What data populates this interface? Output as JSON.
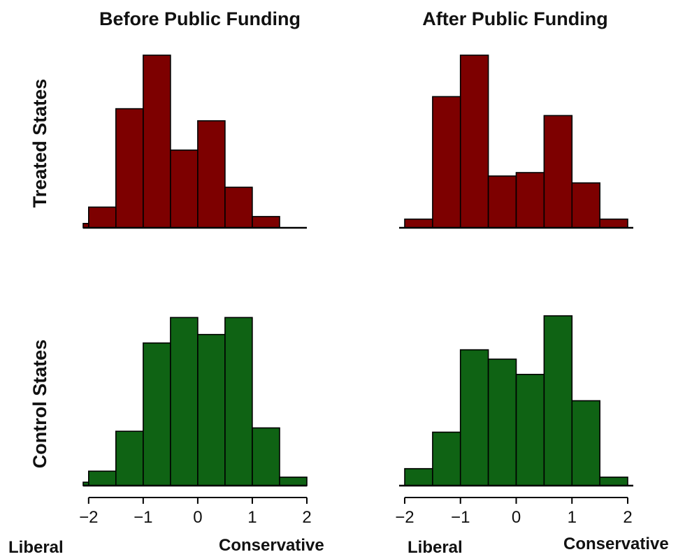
{
  "figure": {
    "column_titles": [
      "Before Public Funding",
      "After Public Funding"
    ],
    "row_titles": [
      "Treated States",
      "Control States"
    ],
    "x_end_labels": {
      "left": "Liberal",
      "right": "Conservative"
    },
    "colors": {
      "treated": "#7d0000",
      "control": "#0f6314",
      "axis": "#000000"
    }
  },
  "chart_data": [
    {
      "type": "bar",
      "panel": "treated-before",
      "bin_edges": [
        -2.1,
        -2.0,
        -1.5,
        -1.0,
        -0.5,
        0.0,
        0.5,
        1.0,
        1.5
      ],
      "values": [
        0.025,
        0.12,
        0.69,
        1.0,
        0.45,
        0.62,
        0.235,
        0.065
      ],
      "xlim": [
        -2.1,
        2.0
      ],
      "ylim": [
        0,
        1.0
      ],
      "x_ticks": [
        -2,
        -1,
        0,
        1,
        2
      ],
      "show_x_axis": false,
      "color": "treated"
    },
    {
      "type": "bar",
      "panel": "treated-after",
      "bin_edges": [
        -2.0,
        -1.5,
        -1.0,
        -0.5,
        0.0,
        0.5,
        1.0,
        1.5,
        2.0
      ],
      "values": [
        0.05,
        0.76,
        1.0,
        0.3,
        0.32,
        0.65,
        0.26,
        0.05
      ],
      "xlim": [
        -2.1,
        2.1
      ],
      "ylim": [
        0,
        1.0
      ],
      "x_ticks": [
        -2,
        -1,
        0,
        1,
        2
      ],
      "show_x_axis": false,
      "color": "treated"
    },
    {
      "type": "bar",
      "panel": "control-before",
      "bin_edges": [
        -2.1,
        -2.0,
        -1.5,
        -1.0,
        -0.5,
        0.0,
        0.5,
        1.0,
        1.5,
        2.0
      ],
      "values": [
        0.02,
        0.085,
        0.32,
        0.84,
        0.99,
        0.89,
        0.99,
        0.34,
        0.05
      ],
      "xlim": [
        -2.1,
        2.0
      ],
      "ylim": [
        0,
        1.0
      ],
      "x_ticks": [
        -2,
        -1,
        0,
        1,
        2
      ],
      "show_x_axis": true,
      "color": "control"
    },
    {
      "type": "bar",
      "panel": "control-after",
      "bin_edges": [
        -2.0,
        -1.5,
        -1.0,
        -0.5,
        0.0,
        0.5,
        1.0,
        1.5,
        2.0
      ],
      "values": [
        0.1,
        0.315,
        0.8,
        0.745,
        0.655,
        1.0,
        0.5,
        0.05
      ],
      "xlim": [
        -2.1,
        2.1
      ],
      "ylim": [
        0,
        1.0
      ],
      "x_ticks": [
        -2,
        -1,
        0,
        1,
        2
      ],
      "show_x_axis": true,
      "color": "control"
    }
  ]
}
